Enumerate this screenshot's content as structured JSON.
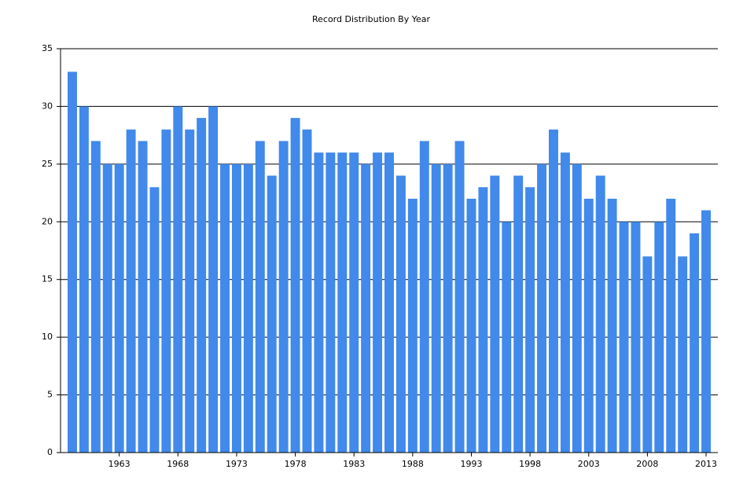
{
  "chart_data": {
    "type": "bar",
    "title": "Record Distribution By Year",
    "categories": [
      null,
      null,
      null,
      null,
      "1963",
      null,
      null,
      null,
      null,
      "1968",
      null,
      null,
      null,
      null,
      "1973",
      null,
      null,
      null,
      null,
      "1978",
      null,
      null,
      null,
      null,
      "1983",
      null,
      null,
      null,
      null,
      "1988",
      null,
      null,
      null,
      null,
      "1993",
      null,
      null,
      null,
      null,
      "1998",
      null,
      null,
      null,
      null,
      "2003",
      null,
      null,
      null,
      null,
      "2008",
      null,
      null,
      null,
      null,
      "2013"
    ],
    "values": [
      33,
      30,
      27,
      25,
      25,
      28,
      27,
      23,
      28,
      30,
      28,
      29,
      30,
      25,
      25,
      25,
      27,
      24,
      27,
      29,
      28,
      26,
      26,
      26,
      26,
      25,
      26,
      26,
      24,
      22,
      27,
      25,
      25,
      27,
      22,
      23,
      24,
      20,
      24,
      23,
      25,
      28,
      26,
      25,
      22,
      24,
      22,
      20,
      20,
      17,
      20,
      22,
      17,
      19,
      21
    ],
    "color": "#4189eb",
    "ylim": [
      0,
      35
    ],
    "yticks": [
      0,
      5,
      10,
      15,
      20,
      25,
      30,
      35
    ],
    "grid": true
  }
}
